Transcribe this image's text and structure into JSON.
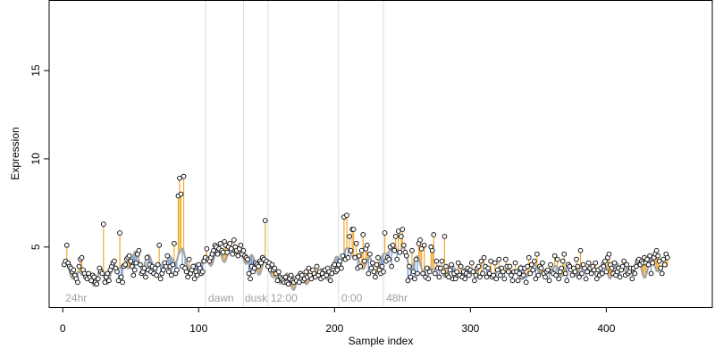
{
  "chart_data": {
    "type": "scatter",
    "xlabel": "Sample index",
    "ylabel": "Expression",
    "xlim": [
      -10,
      478
    ],
    "ylim": [
      1.6,
      19
    ],
    "x_ticks": [
      0,
      100,
      200,
      300,
      400
    ],
    "y_ticks": [
      5,
      10,
      15
    ],
    "segments": [
      {
        "label": "24hr",
        "x": 2,
        "boundary": null
      },
      {
        "label": "dawn",
        "x": 107,
        "boundary": 105
      },
      {
        "label": "dusk",
        "x": 134,
        "boundary": 133
      },
      {
        "label": "12:00",
        "x": 153,
        "boundary": 151
      },
      {
        "label": "0:00",
        "x": 205,
        "boundary": 203
      },
      {
        "label": "48hr",
        "x": 238,
        "boundary": 236
      }
    ],
    "colors": {
      "above_fit": "#f0a830",
      "below_fit": "#6f95d8",
      "fit_line": "#a6a6a6",
      "separator": "#dcdcdc",
      "segment_label": "#a0a0a0",
      "point_fill": "#ffffff",
      "point_stroke": "#000000"
    },
    "series": [
      {
        "role": "observed",
        "x_start": 1,
        "values": [
          4.0,
          4.2,
          5.1,
          4.1,
          3.9,
          3.8,
          3.6,
          3.7,
          3.4,
          3.2,
          3.0,
          3.9,
          4.3,
          4.4,
          3.7,
          3.5,
          3.3,
          3.2,
          3.5,
          3.3,
          3.1,
          3.4,
          3.3,
          3.0,
          2.9,
          3.2,
          3.8,
          3.6,
          3.5,
          6.3,
          3.0,
          3.3,
          3.5,
          3.1,
          3.7,
          3.9,
          4.1,
          4.2,
          3.8,
          3.6,
          3.1,
          5.8,
          3.3,
          3.0,
          3.9,
          4.0,
          4.3,
          4.4,
          4.5,
          4.2,
          3.9,
          3.4,
          3.7,
          4.1,
          4.6,
          4.8,
          4.0,
          3.5,
          3.6,
          3.8,
          3.3,
          4.4,
          3.7,
          4.0,
          3.6,
          3.9,
          3.5,
          3.8,
          3.4,
          4.0,
          5.1,
          3.2,
          3.5,
          3.7,
          4.1,
          3.9,
          4.5,
          3.6,
          3.9,
          3.4,
          4.0,
          5.2,
          3.5,
          3.7,
          7.9,
          8.9,
          8.0,
          3.9,
          9.0,
          3.8,
          3.6,
          3.3,
          4.3,
          3.5,
          3.7,
          3.9,
          3.2,
          3.6,
          3.4,
          4.0,
          3.8,
          3.5,
          3.6,
          4.2,
          4.4,
          4.9,
          4.3,
          4.2,
          4.4,
          4.6,
          4.8,
          5.1,
          5.0,
          4.6,
          4.9,
          5.2,
          4.8,
          4.7,
          5.3,
          5.1,
          4.7,
          5.0,
          5.2,
          4.9,
          4.6,
          5.4,
          5.0,
          4.8,
          4.5,
          4.9,
          5.1,
          4.6,
          4.8,
          4.5,
          4.4,
          4.3,
          3.5,
          3.2,
          3.9,
          3.6,
          3.8,
          4.1,
          4.0,
          3.9,
          4.2,
          4.1,
          4.4,
          4.3,
          6.5,
          4.2,
          3.9,
          4.1,
          3.7,
          4.0,
          3.7,
          3.8,
          3.5,
          3.1,
          3.6,
          3.3,
          3.2,
          3.1,
          3.0,
          3.3,
          3.0,
          2.9,
          3.2,
          3.4,
          3.1,
          3.0,
          3.2,
          3.1,
          3.3,
          3.0,
          3.5,
          3.4,
          3.1,
          3.2,
          3.6,
          3.3,
          3.8,
          3.4,
          3.2,
          3.7,
          3.5,
          3.3,
          3.9,
          3.4,
          3.6,
          3.2,
          3.5,
          3.3,
          3.7,
          3.4,
          3.8,
          3.6,
          3.1,
          3.5,
          3.9,
          4.0,
          3.6,
          3.7,
          4.0,
          4.2,
          3.8,
          4.5,
          6.7,
          4.3,
          6.8,
          4.4,
          5.6,
          4.8,
          6.0,
          6.0,
          4.4,
          5.2,
          3.8,
          4.5,
          3.9,
          4.8,
          5.7,
          4.2,
          4.9,
          5.1,
          3.5,
          4.6,
          3.8,
          4.1,
          3.6,
          3.3,
          4.0,
          4.4,
          3.7,
          3.5,
          3.9,
          3.6,
          5.8,
          4.2,
          4.4,
          4.3,
          5.0,
          3.9,
          5.1,
          4.8,
          5.6,
          4.3,
          5.9,
          4.7,
          5.6,
          6.0,
          5.1,
          4.7,
          4.5,
          3.1,
          3.9,
          3.3,
          4.8,
          3.6,
          3.2,
          4.3,
          3.5,
          5.2,
          5.4,
          4.9,
          3.5,
          5.1,
          3.3,
          3.8,
          3.2,
          3.6,
          5.0,
          4.8,
          5.7,
          3.5,
          4.2,
          3.8,
          3.3,
          3.8,
          4.2,
          3.6,
          5.6,
          3.9,
          3.4,
          3.3,
          3.7,
          4.0,
          3.2,
          3.5,
          3.2,
          3.6,
          4.1,
          3.4,
          3.9,
          3.3,
          3.6,
          3.2,
          3.5,
          3.8,
          3.4,
          3.7,
          4.1,
          3.6,
          3.1,
          3.4,
          3.8,
          3.9,
          3.3,
          4.2,
          3.5,
          4.4,
          3.9,
          3.3,
          3.8,
          3.5,
          4.2,
          3.3,
          3.4,
          4.1,
          3.2,
          3.7,
          4.3,
          3.4,
          3.8,
          3.6,
          3.2,
          4.3,
          3.9,
          3.6,
          3.9,
          3.4,
          3.1,
          3.6,
          4.1,
          3.6,
          3.1,
          3.5,
          3.8,
          3.3,
          3.4,
          3.8,
          3.0,
          3.9,
          4.4,
          3.5,
          4.0,
          3.7,
          4.2,
          3.2,
          4.6,
          3.4,
          3.9,
          3.8,
          4.1,
          3.5,
          3.3,
          3.6,
          3.7,
          3.1,
          4.0,
          3.6,
          3.5,
          4.5,
          3.4,
          4.3,
          3.2,
          3.6,
          3.8,
          4.2,
          4.6,
          3.5,
          3.1,
          4.0,
          3.9,
          3.7,
          3.4,
          3.8,
          3.6,
          4.3,
          3.9,
          3.3,
          4.8,
          3.5,
          4.0,
          3.8,
          3.2,
          3.6,
          4.1,
          3.8,
          3.5,
          3.9,
          3.7,
          4.1,
          3.2,
          3.7,
          3.4,
          3.8,
          3.5,
          3.9,
          4.2,
          3.6,
          4.4,
          4.6,
          4.0,
          3.8,
          3.5,
          4.1,
          3.4,
          3.6,
          3.8,
          3.3,
          3.7,
          3.9,
          4.2,
          3.4,
          4.0,
          3.5,
          3.6,
          3.8,
          3.2,
          3.8,
          3.5,
          3.9,
          4.2,
          4.3,
          4.0,
          4.2,
          4.1,
          4.4,
          4.1,
          4.3,
          4.0,
          4.5,
          3.5,
          4.1,
          4.4,
          4.6,
          4.8,
          4.5,
          4.2,
          3.8,
          3.5,
          4.3,
          4.0,
          4.6,
          4.4
        ]
      },
      {
        "role": "fitted",
        "knots": [
          [
            1,
            3.7
          ],
          [
            15,
            3.4
          ],
          [
            25,
            3.2
          ],
          [
            33,
            3.4
          ],
          [
            45,
            4.0
          ],
          [
            55,
            4.3
          ],
          [
            70,
            4.0
          ],
          [
            80,
            4.1
          ],
          [
            85,
            4.9
          ],
          [
            90,
            4.1
          ],
          [
            100,
            3.9
          ],
          [
            105,
            4.3
          ],
          [
            118,
            4.6
          ],
          [
            125,
            4.7
          ],
          [
            133,
            4.5
          ],
          [
            140,
            4.0
          ],
          [
            150,
            3.9
          ],
          [
            155,
            3.4
          ],
          [
            160,
            3.1
          ],
          [
            175,
            3.1
          ],
          [
            190,
            3.5
          ],
          [
            200,
            3.7
          ],
          [
            203,
            4.5
          ],
          [
            208,
            4.8
          ],
          [
            215,
            4.4
          ],
          [
            225,
            3.9
          ],
          [
            235,
            4.1
          ],
          [
            240,
            4.9
          ],
          [
            245,
            5.1
          ],
          [
            250,
            4.6
          ],
          [
            260,
            4.0
          ],
          [
            275,
            3.7
          ],
          [
            300,
            3.6
          ],
          [
            350,
            3.7
          ],
          [
            400,
            3.7
          ],
          [
            440,
            3.9
          ],
          [
            455,
            4.2
          ],
          [
            462,
            4.3
          ]
        ],
        "wiggle": [
          [
            262,
            0.55
          ],
          [
            300,
            0.35
          ],
          [
            345,
            0.35
          ],
          [
            380,
            0.45
          ],
          [
            420,
            0.6
          ],
          [
            462,
            0.55
          ]
        ]
      }
    ]
  }
}
